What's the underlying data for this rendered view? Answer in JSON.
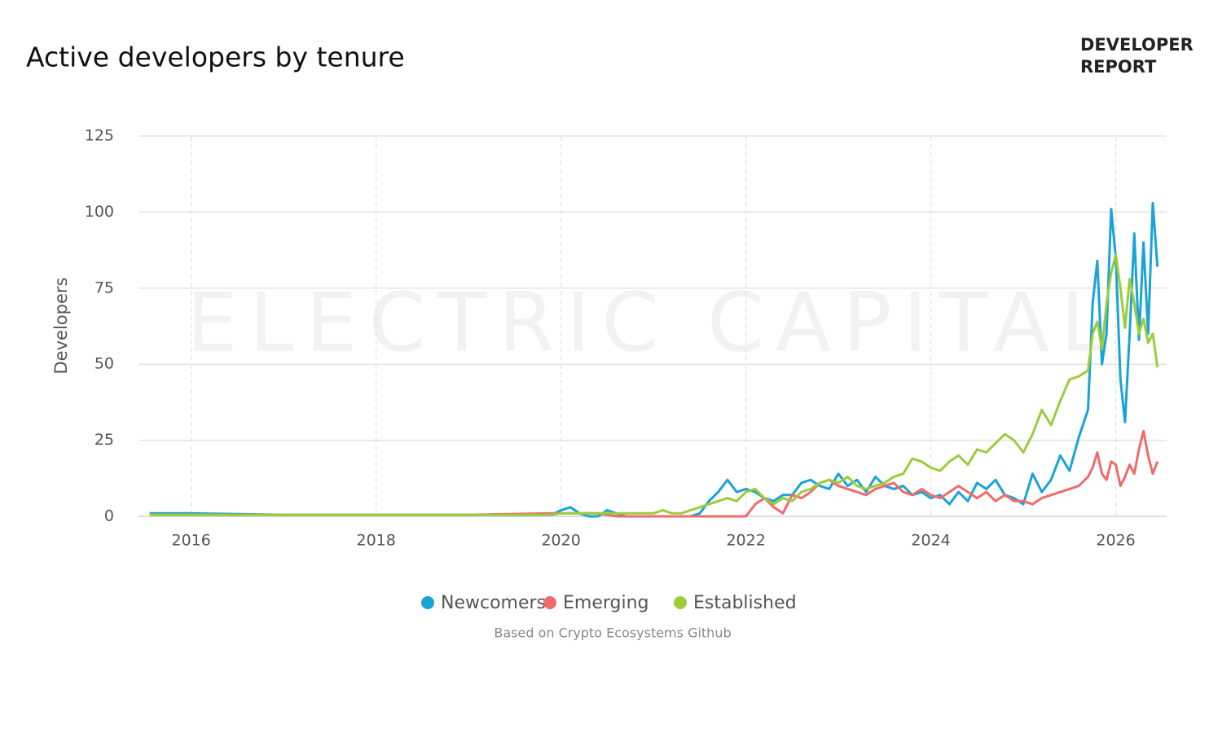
{
  "brand": [
    "DEVELOPER",
    "REPORT"
  ],
  "watermark": "ELECTRIC CAPITAL",
  "chart_data": {
    "type": "line",
    "title": "Active developers by tenure",
    "ylabel": "Developers",
    "source": "Based on Crypto Ecosystems Github",
    "x": [
      2015.55,
      2016,
      2017,
      2018,
      2019,
      2019.9,
      2020.0,
      2020.1,
      2020.2,
      2020.3,
      2020.4,
      2020.5,
      2020.6,
      2020.7,
      2020.8,
      2020.9,
      2021.0,
      2021.1,
      2021.2,
      2021.3,
      2021.4,
      2021.5,
      2021.6,
      2021.7,
      2021.8,
      2021.9,
      2022.0,
      2022.1,
      2022.2,
      2022.3,
      2022.4,
      2022.5,
      2022.6,
      2022.7,
      2022.8,
      2022.9,
      2023.0,
      2023.1,
      2023.2,
      2023.3,
      2023.4,
      2023.5,
      2023.6,
      2023.7,
      2023.8,
      2023.9,
      2024.0,
      2024.1,
      2024.2,
      2024.3,
      2024.4,
      2024.5,
      2024.6,
      2024.7,
      2024.8,
      2024.9,
      2025.0,
      2025.1,
      2025.2,
      2025.3,
      2025.4,
      2025.5,
      2025.6,
      2025.7,
      2025.75,
      2025.8,
      2025.85,
      2025.9,
      2025.95,
      2026.0,
      2026.05,
      2026.1,
      2026.15,
      2026.2,
      2026.25,
      2026.3,
      2026.35,
      2026.4,
      2026.45
    ],
    "series": [
      {
        "name": "Newcomers",
        "color": "#1aa3d6",
        "values": [
          1,
          1,
          0.5,
          0.5,
          0.5,
          0.5,
          2,
          3,
          1,
          0,
          0,
          2,
          1,
          0,
          0,
          0,
          0,
          0,
          0,
          0,
          0,
          1,
          5,
          8,
          12,
          8,
          9,
          8,
          6,
          5,
          7,
          7,
          11,
          12,
          10,
          9,
          14,
          10,
          12,
          8,
          13,
          10,
          9,
          10,
          7,
          8,
          6,
          7,
          4,
          8,
          5,
          11,
          9,
          12,
          7,
          6,
          4,
          14,
          8,
          12,
          20,
          15,
          26,
          35,
          70,
          84,
          50,
          60,
          101,
          85,
          45,
          31,
          60,
          93,
          58,
          90,
          60,
          103,
          82
        ]
      },
      {
        "name": "Emerging",
        "color": "#f06b6b",
        "values": [
          0.5,
          0.5,
          0.5,
          0.5,
          0.5,
          1,
          1,
          1,
          1,
          1,
          1,
          0.5,
          0,
          0,
          0,
          0,
          0,
          0,
          0,
          0,
          0,
          0,
          0,
          0,
          0,
          0,
          0,
          4,
          6,
          3,
          1,
          7,
          6,
          8,
          11,
          12,
          10,
          9,
          8,
          7,
          9,
          10,
          11,
          8,
          7,
          9,
          7,
          6,
          8,
          10,
          8,
          6,
          8,
          5,
          7,
          5,
          5,
          4,
          6,
          7,
          8,
          9,
          10,
          13,
          16,
          21,
          14,
          12,
          18,
          17,
          10,
          13,
          17,
          14,
          22,
          28,
          20,
          14,
          18
        ]
      },
      {
        "name": "Established",
        "color": "#9ccc3c",
        "values": [
          0.5,
          0.5,
          0.5,
          0.5,
          0.5,
          0.5,
          1,
          1,
          1,
          1,
          1,
          1,
          1,
          1,
          1,
          1,
          1,
          2,
          1,
          1,
          2,
          3,
          4,
          5,
          6,
          5,
          8,
          9,
          6,
          4,
          6,
          5,
          8,
          9,
          11,
          12,
          11,
          13,
          10,
          9,
          10,
          11,
          13,
          14,
          19,
          18,
          16,
          15,
          18,
          20,
          17,
          22,
          21,
          24,
          27,
          25,
          21,
          27,
          35,
          30,
          38,
          45,
          46,
          48,
          60,
          64,
          55,
          70,
          80,
          86,
          75,
          62,
          78,
          70,
          60,
          65,
          57,
          60,
          49
        ]
      }
    ],
    "xlim": [
      2015.43,
      2026.55
    ],
    "xticks": [
      2016,
      2018,
      2020,
      2022,
      2024,
      2026
    ],
    "ylim": [
      0,
      125
    ],
    "yticks": [
      0,
      25,
      50,
      75,
      100,
      125
    ],
    "grid": true
  }
}
